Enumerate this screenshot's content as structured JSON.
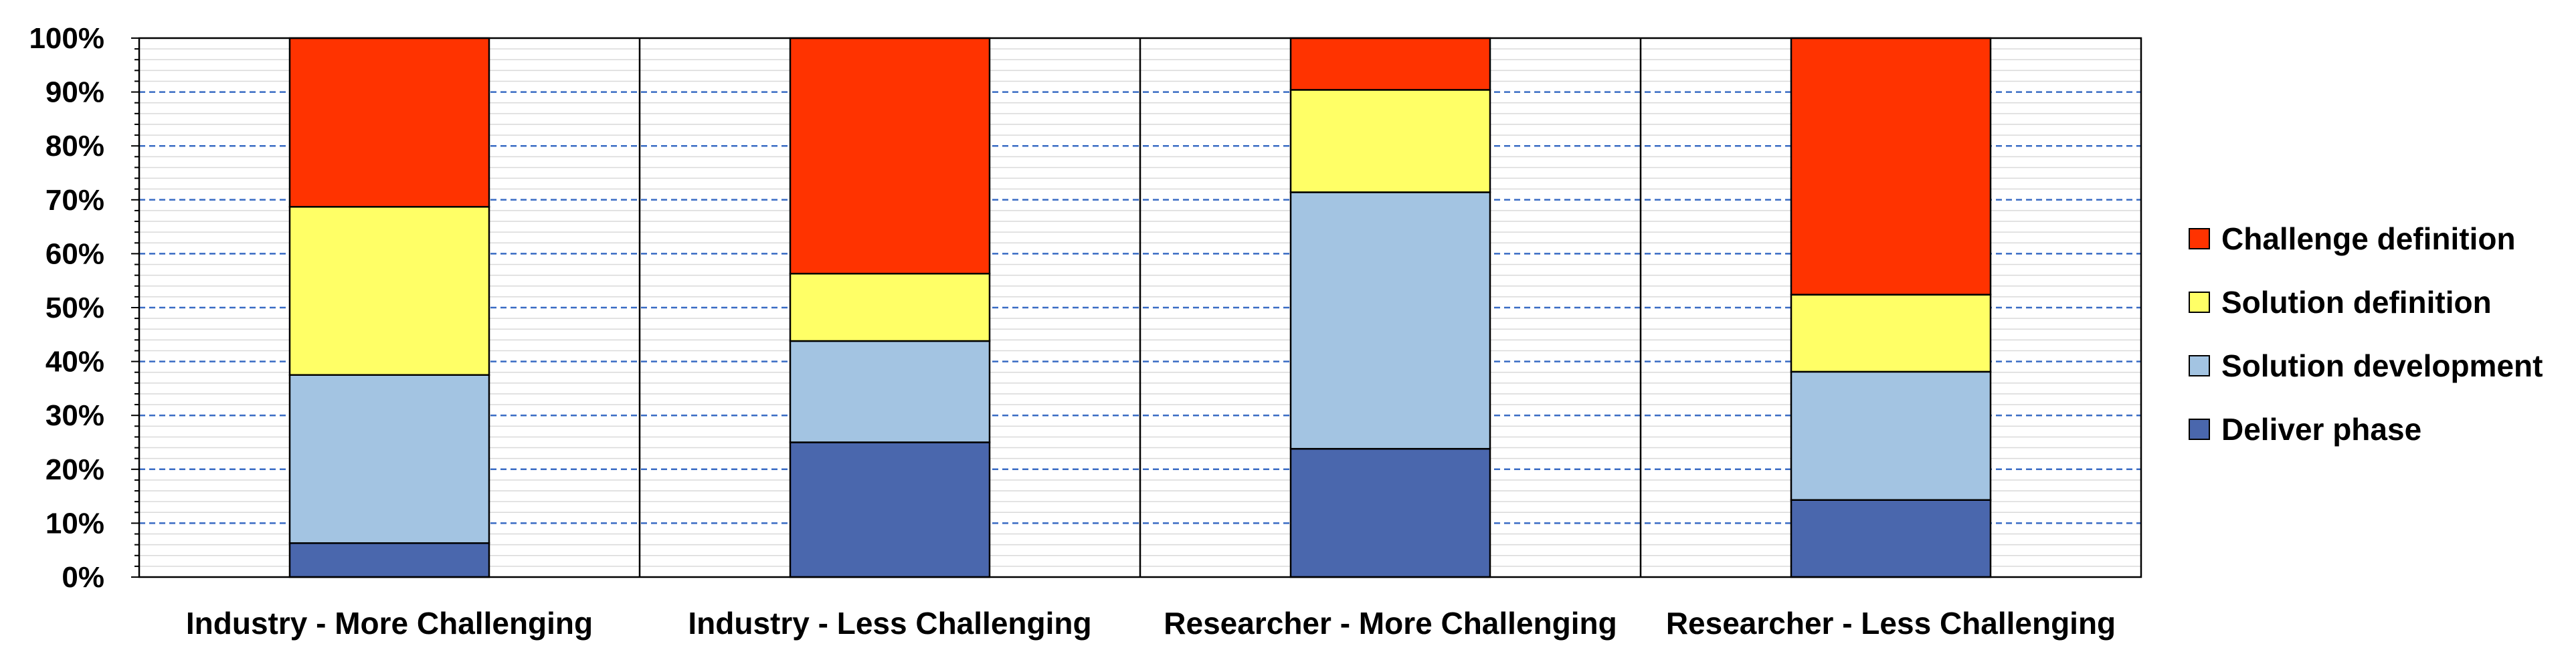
{
  "chart_data": {
    "type": "bar",
    "stacked": true,
    "percent": true,
    "title": "",
    "xlabel": "",
    "ylabel": "",
    "ylim": [
      0,
      100
    ],
    "yticks": [
      "0%",
      "10%",
      "20%",
      "30%",
      "40%",
      "50%",
      "60%",
      "70%",
      "80%",
      "90%",
      "100%"
    ],
    "grid": true,
    "legend_position": "right",
    "categories": [
      "Industry - More Challenging",
      "Industry - Less Challenging",
      "Researcher - More Challenging",
      "Researcher - Less Challenging"
    ],
    "series": [
      {
        "name": "Deliver phase",
        "color": "#4a67ad",
        "values": [
          6.3,
          25.0,
          23.8,
          14.3
        ]
      },
      {
        "name": "Solution development",
        "color": "#a3c4e2",
        "values": [
          31.2,
          18.8,
          47.6,
          23.8
        ]
      },
      {
        "name": "Solution definition",
        "color": "#ffff66",
        "values": [
          31.2,
          12.5,
          19.0,
          14.3
        ]
      },
      {
        "name": "Challenge definition",
        "color": "#ff3300",
        "values": [
          31.3,
          43.7,
          9.6,
          47.6
        ]
      }
    ],
    "legend_order": [
      "Challenge definition",
      "Solution definition",
      "Solution development",
      "Deliver phase"
    ]
  }
}
